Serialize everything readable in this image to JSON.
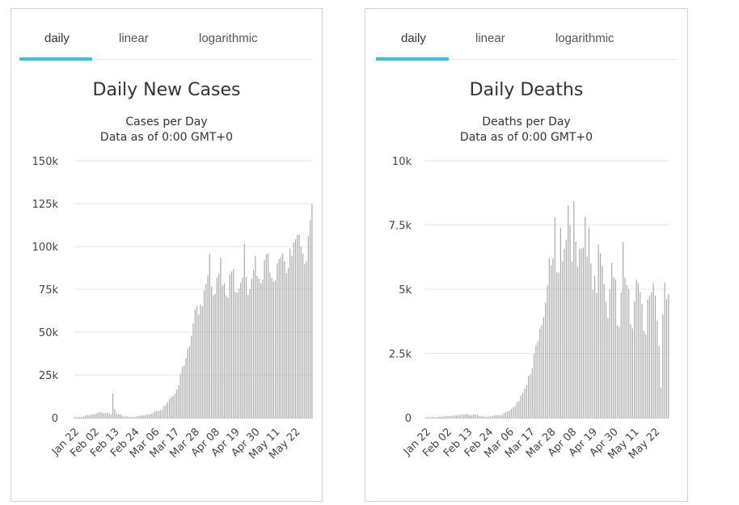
{
  "charts": [
    {
      "tabs": [
        "daily",
        "linear",
        "logarithmic"
      ],
      "active_tab": 0,
      "title": "Daily New Cases",
      "subtitle_line1": "Cases per Day",
      "subtitle_line2": "Data as of 0:00 GMT+0"
    },
    {
      "tabs": [
        "daily",
        "linear",
        "logarithmic"
      ],
      "active_tab": 0,
      "title": "Daily Deaths",
      "subtitle_line1": "Deaths per Day",
      "subtitle_line2": "Data as of 0:00 GMT+0"
    }
  ],
  "colors": {
    "accent": "#33c3f0",
    "bar": "#aaaaaa",
    "grid": "#e6e6e6",
    "axis_text": "#444444"
  },
  "chart_data": [
    {
      "type": "bar",
      "title": "Daily New Cases",
      "subtitle": "Cases per Day",
      "ylim": [
        0,
        150000
      ],
      "yticks": [
        0,
        25000,
        50000,
        75000,
        100000,
        125000,
        150000
      ],
      "ytick_labels": [
        "0",
        "25k",
        "50k",
        "75k",
        "100k",
        "125k",
        "150k"
      ],
      "xtick_labels": [
        "Jan 22",
        "Feb 02",
        "Feb 13",
        "Feb 24",
        "Mar 06",
        "Mar 17",
        "Mar 28",
        "Apr 08",
        "Apr 19",
        "Apr 30",
        "May 11",
        "May 22"
      ],
      "xtick_positions": [
        0,
        11,
        22,
        33,
        44,
        55,
        66,
        77,
        88,
        99,
        110,
        121
      ],
      "values": [
        0,
        150,
        250,
        400,
        600,
        800,
        1200,
        1500,
        1600,
        1700,
        2000,
        2100,
        2600,
        3000,
        3300,
        3100,
        2600,
        2900,
        3000,
        2500,
        2100,
        14100,
        5100,
        2600,
        2000,
        2000,
        1500,
        500,
        1000,
        600,
        400,
        200,
        400,
        500,
        700,
        1000,
        1200,
        1300,
        1400,
        1500,
        2000,
        1900,
        2400,
        2700,
        3800,
        3900,
        3900,
        4500,
        4500,
        6800,
        7500,
        9000,
        10900,
        12200,
        12800,
        14100,
        16600,
        18800,
        25600,
        29700,
        30400,
        34800,
        40400,
        41900,
        47900,
        55000,
        63200,
        65400,
        60300,
        66000,
        64900,
        74400,
        78100,
        83200,
        95600,
        76400,
        71600,
        72300,
        81900,
        84100,
        93300,
        77200,
        78400,
        71700,
        70100,
        83800,
        85400,
        86700,
        73500,
        72900,
        75400,
        78900,
        81800,
        101600,
        82100,
        71800,
        75000,
        81200,
        86500,
        94200,
        82700,
        81100,
        78600,
        80600,
        92300,
        95300,
        96000,
        84700,
        81700,
        79600,
        80200,
        90100,
        92800,
        93900,
        95900,
        91300,
        84400,
        87600,
        98800,
        94500,
        102300,
        104200,
        106700,
        107000,
        99800,
        95700,
        89600,
        91300,
        106000,
        115300,
        124500
      ]
    },
    {
      "type": "bar",
      "title": "Daily Deaths",
      "subtitle": "Deaths per Day",
      "ylim": [
        0,
        10000
      ],
      "yticks": [
        0,
        2500,
        5000,
        7500,
        10000
      ],
      "ytick_labels": [
        "0",
        "2.5k",
        "5k",
        "7.5k",
        "10k"
      ],
      "xtick_labels": [
        "Jan 22",
        "Feb 02",
        "Feb 13",
        "Feb 24",
        "Mar 06",
        "Mar 17",
        "Mar 28",
        "Apr 08",
        "Apr 19",
        "Apr 30",
        "May 11",
        "May 22"
      ],
      "xtick_positions": [
        0,
        11,
        22,
        33,
        44,
        55,
        66,
        77,
        88,
        99,
        110,
        121
      ],
      "values": [
        0,
        0,
        8,
        16,
        15,
        24,
        26,
        43,
        46,
        45,
        57,
        64,
        66,
        73,
        86,
        89,
        97,
        108,
        97,
        146,
        121,
        143,
        142,
        105,
        98,
        136,
        114,
        119,
        64,
        71,
        52,
        29,
        44,
        37,
        58,
        64,
        98,
        97,
        103,
        110,
        104,
        176,
        206,
        256,
        276,
        352,
        405,
        456,
        604,
        651,
        865,
        968,
        1114,
        1271,
        1617,
        1686,
        1941,
        2489,
        2823,
        2972,
        3467,
        3604,
        3916,
        4472,
        5148,
        6204,
        5935,
        6209,
        7804,
        5669,
        5640,
        7387,
        6083,
        6582,
        6933,
        8263,
        7487,
        6080,
        8423,
        6855,
        5890,
        6584,
        6582,
        6626,
        7812,
        6271,
        7396,
        6014,
        4980,
        5530,
        4848,
        6741,
        6398,
        5904,
        5207,
        4520,
        3871,
        4998,
        6025,
        5470,
        5381,
        3599,
        3524,
        4869,
        6835,
        5453,
        5161,
        5013,
        3629,
        3471,
        4525,
        5367,
        5240,
        4882,
        4436,
        3381,
        3241,
        4589,
        4717,
        4865,
        5241,
        4742,
        3786,
        2813,
        1181,
        4026,
        5252,
        4616,
        4812
      ]
    }
  ]
}
